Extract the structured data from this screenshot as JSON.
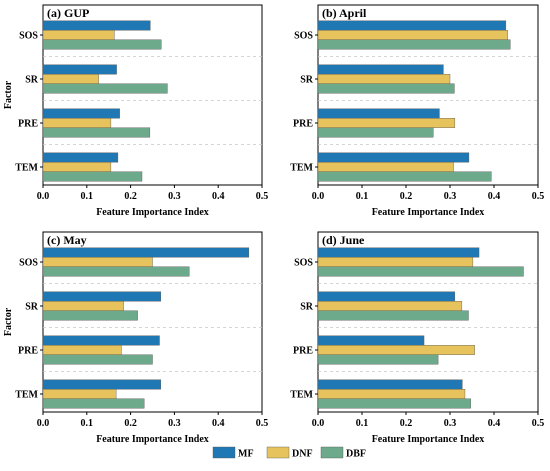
{
  "colors": {
    "MF": "#1f77b4",
    "DNF": "#e6c35c",
    "DBF": "#6daa8c"
  },
  "legend": [
    "MF",
    "DNF",
    "DBF"
  ],
  "chart_data": [
    {
      "type": "bar",
      "title": "(a) GUP",
      "categories": [
        "SOS",
        "SR",
        "PRE",
        "TEM"
      ],
      "series": [
        {
          "name": "MF",
          "values": [
            0.245,
            0.168,
            0.175,
            0.171
          ]
        },
        {
          "name": "DNF",
          "values": [
            0.163,
            0.127,
            0.155,
            0.155
          ]
        },
        {
          "name": "DBF",
          "values": [
            0.27,
            0.284,
            0.244,
            0.226
          ]
        }
      ],
      "xlabel": "Feature Importance Index",
      "ylabel": "Factor",
      "xlim": [
        0,
        0.5
      ],
      "xticks": [
        "0.0",
        "0.1",
        "0.2",
        "0.3",
        "0.4",
        "0.5"
      ]
    },
    {
      "type": "bar",
      "title": "(b) April",
      "categories": [
        "SOS",
        "SR",
        "PRE",
        "TEM"
      ],
      "series": [
        {
          "name": "MF",
          "values": [
            0.427,
            0.285,
            0.276,
            0.343
          ]
        },
        {
          "name": "DNF",
          "values": [
            0.431,
            0.3,
            0.311,
            0.308
          ]
        },
        {
          "name": "DBF",
          "values": [
            0.437,
            0.31,
            0.262,
            0.394
          ]
        }
      ],
      "xlabel": "Feature Importance Index",
      "ylabel": "",
      "xlim": [
        0,
        0.5
      ],
      "xticks": [
        "0.0",
        "0.1",
        "0.2",
        "0.3",
        "0.4",
        "0.5"
      ]
    },
    {
      "type": "bar",
      "title": "(c) May",
      "categories": [
        "SOS",
        "SR",
        "PRE",
        "TEM"
      ],
      "series": [
        {
          "name": "MF",
          "values": [
            0.47,
            0.269,
            0.266,
            0.269
          ]
        },
        {
          "name": "DNF",
          "values": [
            0.25,
            0.184,
            0.179,
            0.167
          ]
        },
        {
          "name": "DBF",
          "values": [
            0.334,
            0.216,
            0.25,
            0.231
          ]
        }
      ],
      "xlabel": "Feature Importance Index",
      "ylabel": "Factor",
      "xlim": [
        0,
        0.5
      ],
      "xticks": [
        "0.0",
        "0.1",
        "0.2",
        "0.3",
        "0.4",
        "0.5"
      ]
    },
    {
      "type": "bar",
      "title": "(d) June",
      "categories": [
        "SOS",
        "SR",
        "PRE",
        "TEM"
      ],
      "series": [
        {
          "name": "MF",
          "values": [
            0.366,
            0.311,
            0.241,
            0.328
          ]
        },
        {
          "name": "DNF",
          "values": [
            0.352,
            0.327,
            0.356,
            0.334
          ]
        },
        {
          "name": "DBF",
          "values": [
            0.467,
            0.342,
            0.273,
            0.347
          ]
        }
      ],
      "xlabel": "Feature Importance Index",
      "ylabel": "",
      "xlim": [
        0,
        0.5
      ],
      "xticks": [
        "0.0",
        "0.1",
        "0.2",
        "0.3",
        "0.4",
        "0.5"
      ]
    }
  ]
}
